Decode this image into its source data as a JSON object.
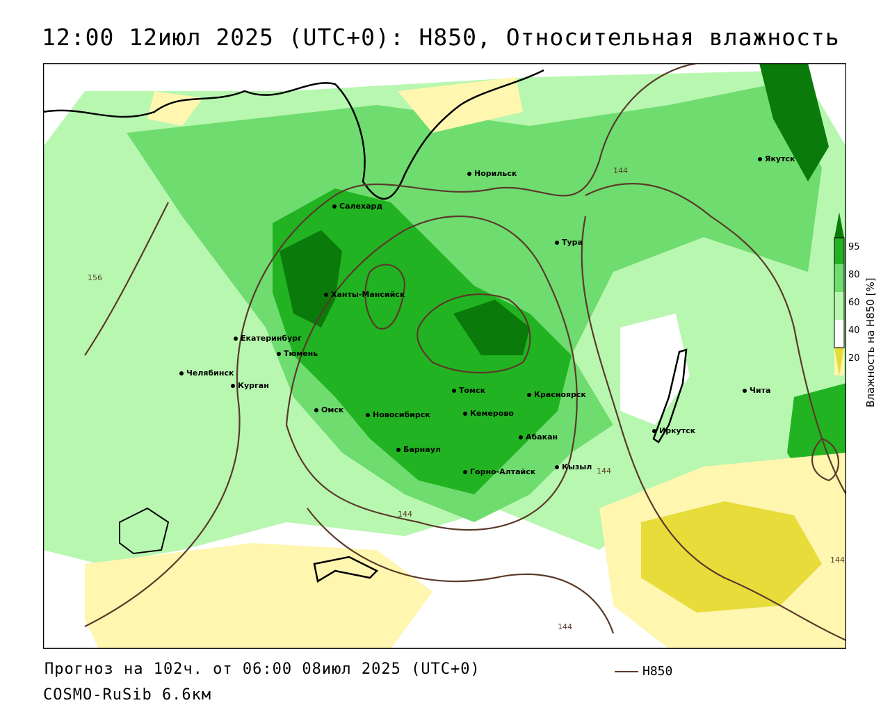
{
  "title": "12:00 12июл 2025 (UTC+0): H850, Относительная влажность",
  "footer": {
    "forecast": "Прогноз на 102ч. от 06:00 08июл 2025 (UTC+0)",
    "model": "COSMO-RuSib 6.6км",
    "line_legend": "H850"
  },
  "colorbar": {
    "title": "Влажность на H850 [%]",
    "ticks": [
      "95",
      "80",
      "60",
      "40",
      "20"
    ],
    "colors": {
      "c95": "#0a7a0a",
      "c80": "#22b322",
      "c60": "#6fdc6f",
      "c50": "#b8f7b0",
      "c40": "#ffffff",
      "c30": "#fff6b0",
      "c20": "#e8dc3a",
      "c10": "#c8b020"
    }
  },
  "contour_labels": [
    "144",
    "156",
    "144",
    "144",
    "144",
    "144"
  ],
  "cities": [
    {
      "name": "Норильск"
    },
    {
      "name": "Якутск"
    },
    {
      "name": "Салехард"
    },
    {
      "name": "Тура"
    },
    {
      "name": "Ханты-Мансийск"
    },
    {
      "name": "Екатеринбург"
    },
    {
      "name": "Тюмень"
    },
    {
      "name": "Челябинск"
    },
    {
      "name": "Курган"
    },
    {
      "name": "Омск"
    },
    {
      "name": "Новосибирск"
    },
    {
      "name": "Томск"
    },
    {
      "name": "Кемерово"
    },
    {
      "name": "Красноярск"
    },
    {
      "name": "Абакан"
    },
    {
      "name": "Барнаул"
    },
    {
      "name": "Горно-Алтайск"
    },
    {
      "name": "Кызыл"
    },
    {
      "name": "Иркутск"
    },
    {
      "name": "Чита"
    }
  ]
}
